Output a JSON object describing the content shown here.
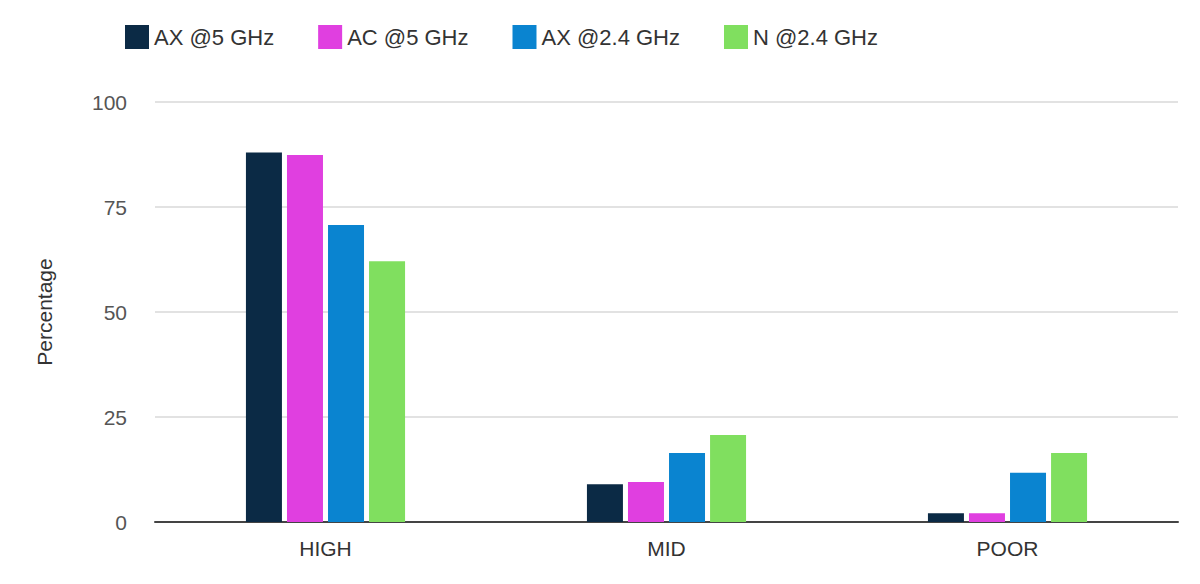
{
  "chart_data": {
    "type": "bar",
    "y_label": "Percentage",
    "categories": [
      "HIGH",
      "MID",
      "POOR"
    ],
    "series": [
      {
        "name": "AX @5 GHz",
        "color": "#0b2a45",
        "values": [
          88,
          9,
          2.1
        ]
      },
      {
        "name": "AC @5 GHz",
        "color": "#e03fe0",
        "values": [
          87.4,
          9.5,
          2.1
        ]
      },
      {
        "name": "AX @2.4 GHz",
        "color": "#0a84d0",
        "values": [
          70.7,
          16.4,
          11.7
        ]
      },
      {
        "name": "N @2.4 GHz",
        "color": "#80df5f",
        "values": [
          62.1,
          20.7,
          16.4
        ]
      }
    ],
    "ylim": [
      0,
      100
    ],
    "yticks": [
      0,
      25,
      50,
      75,
      100
    ],
    "grid": true,
    "legend": "top"
  }
}
